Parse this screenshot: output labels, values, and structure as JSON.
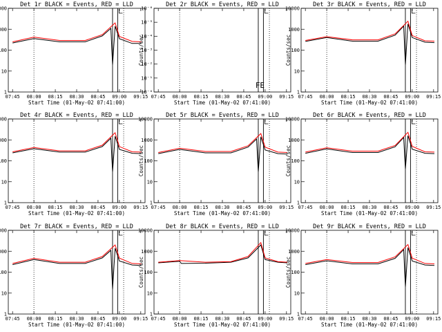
{
  "chart_data": [
    {
      "type": "line",
      "title": "Det 1r BLACK = Events, RED = LLD",
      "xlabel": "Start Time (01-May-02 07:41:00)",
      "ylabel": "Counts/sec",
      "xticks": [
        "07:45",
        "08:00",
        "08:15",
        "08:30",
        "08:45",
        "09:00",
        "09:15"
      ],
      "yticks": [
        "1",
        "10",
        "100",
        "1000",
        "10000"
      ],
      "ylim": [
        1,
        10000
      ],
      "yscale": "log",
      "series": [
        {
          "color": "#000000",
          "x": [
            7.75,
            8.0,
            8.3,
            8.6,
            8.8,
            8.9,
            8.92,
            8.95,
            9.0,
            9.15,
            9.26
          ],
          "y": [
            220,
            360,
            250,
            250,
            480,
            1100,
            20,
            1400,
            350,
            210,
            210
          ]
        },
        {
          "color": "#ff0000",
          "x": [
            7.75,
            8.0,
            8.3,
            8.6,
            8.8,
            8.95,
            9.0,
            9.15,
            9.26
          ],
          "y": [
            250,
            420,
            290,
            290,
            550,
            2000,
            450,
            260,
            250
          ]
        }
      ]
    },
    {
      "type": "line",
      "title": "Det 2r BLACK = Events, RED = LLD",
      "xlabel": "Start Time (01-May-02 07:41:00)",
      "ylabel": "Counts/sec",
      "xticks": [
        "07:45",
        "08:00",
        "08:15",
        "08:30",
        "08:45",
        "09:00",
        "09:15"
      ],
      "yticks": [
        "10⁻⁰",
        "10⁻¹",
        "10⁻²",
        "10⁻³",
        "10⁻⁴",
        "10⁻⁵",
        "10⁻⁶"
      ],
      "yscale": "log",
      "annotation": "FE",
      "series": []
    },
    {
      "type": "line",
      "title": "Det 3r BLACK = Events, RED = LLD",
      "xlabel": "Start Time (01-May-02 07:41:00)",
      "ylabel": "Counts/sec",
      "xticks": [
        "07:45",
        "08:00",
        "08:15",
        "08:30",
        "08:45",
        "09:00",
        "09:15"
      ],
      "yticks": [
        "1",
        "10",
        "100",
        "1000",
        "10000"
      ],
      "ylim": [
        1,
        10000
      ],
      "yscale": "log",
      "series": [
        {
          "color": "#000000",
          "x": [
            7.75,
            8.0,
            8.3,
            8.6,
            8.8,
            8.9,
            8.92,
            8.95,
            9.0,
            9.15,
            9.26
          ],
          "y": [
            260,
            400,
            270,
            270,
            520,
            1400,
            20,
            1800,
            400,
            240,
            230
          ]
        },
        {
          "color": "#ff0000",
          "x": [
            7.75,
            8.0,
            8.3,
            8.6,
            8.8,
            8.95,
            9.0,
            9.15,
            9.26
          ],
          "y": [
            290,
            440,
            310,
            310,
            600,
            2400,
            500,
            280,
            270
          ]
        }
      ]
    },
    {
      "type": "line",
      "title": "Det 4r BLACK = Events, RED = LLD",
      "xlabel": "Start Time (01-May-02 07:41:00)",
      "ylabel": "Counts/sec",
      "xticks": [
        "07:45",
        "08:00",
        "08:15",
        "08:30",
        "08:45",
        "09:00",
        "09:15"
      ],
      "yticks": [
        "1",
        "10",
        "100",
        "1000",
        "10000"
      ],
      "ylim": [
        1,
        10000
      ],
      "yscale": "log",
      "series": [
        {
          "color": "#000000",
          "x": [
            7.75,
            8.0,
            8.3,
            8.6,
            8.8,
            8.9,
            8.92,
            8.95,
            9.0,
            9.15,
            9.26
          ],
          "y": [
            240,
            380,
            260,
            260,
            480,
            1200,
            30,
            1500,
            350,
            230,
            220
          ]
        },
        {
          "color": "#ff0000",
          "x": [
            7.75,
            8.0,
            8.3,
            8.6,
            8.8,
            8.95,
            9.0,
            9.15,
            9.26
          ],
          "y": [
            270,
            430,
            300,
            300,
            560,
            2200,
            480,
            270,
            260
          ]
        }
      ]
    },
    {
      "type": "line",
      "title": "Det 5r BLACK = Events, RED = LLD",
      "xlabel": "Start Time (01-May-02 07:41:00)",
      "ylabel": "Counts/sec",
      "xticks": [
        "07:45",
        "08:00",
        "08:15",
        "08:30",
        "08:45",
        "09:00",
        "09:15"
      ],
      "yticks": [
        "1",
        "10",
        "100",
        "1000",
        "10000"
      ],
      "ylim": [
        1,
        10000
      ],
      "yscale": "log",
      "series": [
        {
          "color": "#000000",
          "x": [
            7.75,
            8.0,
            8.3,
            8.6,
            8.8,
            8.9,
            8.92,
            8.95,
            9.0,
            9.15,
            9.26
          ],
          "y": [
            220,
            350,
            240,
            240,
            450,
            1100,
            30,
            1400,
            330,
            220,
            210
          ]
        },
        {
          "color": "#ff0000",
          "x": [
            7.75,
            8.0,
            8.3,
            8.6,
            8.8,
            8.95,
            9.0,
            9.15,
            9.26
          ],
          "y": [
            250,
            400,
            280,
            280,
            520,
            2000,
            450,
            260,
            250
          ]
        }
      ]
    },
    {
      "type": "line",
      "title": "Det 6r BLACK = Events, RED = LLD",
      "xlabel": "Start Time (01-May-02 07:41:00)",
      "ylabel": "Counts/sec",
      "xticks": [
        "07:45",
        "08:00",
        "08:15",
        "08:30",
        "08:45",
        "09:00",
        "09:15"
      ],
      "yticks": [
        "1",
        "10",
        "100",
        "1000",
        "10000"
      ],
      "ylim": [
        1,
        10000
      ],
      "yscale": "log",
      "series": [
        {
          "color": "#000000",
          "x": [
            7.75,
            8.0,
            8.3,
            8.6,
            8.8,
            8.9,
            8.92,
            8.95,
            9.0,
            9.15,
            9.26
          ],
          "y": [
            230,
            370,
            250,
            250,
            470,
            1300,
            40,
            1600,
            360,
            230,
            220
          ]
        },
        {
          "color": "#ff0000",
          "x": [
            7.75,
            8.0,
            8.3,
            8.6,
            8.8,
            8.95,
            9.0,
            9.15,
            9.26
          ],
          "y": [
            260,
            420,
            290,
            290,
            540,
            2300,
            490,
            270,
            260
          ]
        }
      ]
    },
    {
      "type": "line",
      "title": "Det 7r BLACK = Events, RED = LLD",
      "xlabel": "Start Time (01-May-02 07:41:00)",
      "ylabel": "Counts/sec",
      "xticks": [
        "07:45",
        "08:00",
        "08:15",
        "08:30",
        "08:45",
        "09:00",
        "09:15"
      ],
      "yticks": [
        "1",
        "10",
        "100",
        "1000",
        "10000"
      ],
      "ylim": [
        1,
        10000
      ],
      "yscale": "log",
      "series": [
        {
          "color": "#000000",
          "x": [
            7.75,
            8.0,
            8.3,
            8.6,
            8.8,
            8.9,
            8.92,
            8.95,
            9.0,
            9.15,
            9.26
          ],
          "y": [
            230,
            400,
            260,
            260,
            480,
            1100,
            15,
            1400,
            340,
            220,
            210
          ]
        },
        {
          "color": "#ff0000",
          "x": [
            7.75,
            8.0,
            8.3,
            8.6,
            8.8,
            8.95,
            9.0,
            9.15,
            9.26
          ],
          "y": [
            260,
            460,
            300,
            300,
            560,
            2000,
            470,
            260,
            250
          ]
        }
      ]
    },
    {
      "type": "line",
      "title": "Det 8r BLACK = Events, RED = LLD",
      "xlabel": "Start Time (01-May-02 07:41:00)",
      "ylabel": "Counts/sec",
      "xticks": [
        "07:45",
        "08:00",
        "08:15",
        "08:30",
        "08:45",
        "09:00",
        "09:15"
      ],
      "yticks": [
        "1",
        "10",
        "100",
        "1000",
        "10000"
      ],
      "ylim": [
        1,
        10000
      ],
      "yscale": "log",
      "series": [
        {
          "color": "#000000",
          "x": [
            7.75,
            8.0,
            8.02,
            8.3,
            8.6,
            8.8,
            8.95,
            9.0,
            9.15,
            9.26
          ],
          "y": [
            280,
            330,
            260,
            270,
            300,
            480,
            2000,
            400,
            300,
            280
          ]
        },
        {
          "color": "#ff0000",
          "x": [
            7.75,
            8.0,
            8.3,
            8.6,
            8.8,
            8.95,
            9.0,
            9.15,
            9.26
          ],
          "y": [
            300,
            360,
            300,
            320,
            560,
            2600,
            480,
            320,
            300
          ]
        }
      ]
    },
    {
      "type": "line",
      "title": "Det 9r BLACK = Events, RED = LLD",
      "xlabel": "Start Time (01-May-02 07:41:00)",
      "ylabel": "Counts/sec",
      "xticks": [
        "07:45",
        "08:00",
        "08:15",
        "08:30",
        "08:45",
        "09:00",
        "09:15"
      ],
      "yticks": [
        "1",
        "10",
        "100",
        "1000",
        "10000"
      ],
      "ylim": [
        1,
        10000
      ],
      "yscale": "log",
      "series": [
        {
          "color": "#000000",
          "x": [
            7.75,
            8.0,
            8.3,
            8.6,
            8.8,
            8.9,
            8.92,
            8.95,
            9.0,
            9.15,
            9.26
          ],
          "y": [
            230,
            350,
            250,
            250,
            460,
            1200,
            20,
            1500,
            340,
            220,
            210
          ]
        },
        {
          "color": "#ff0000",
          "x": [
            7.75,
            8.0,
            8.3,
            8.6,
            8.8,
            8.95,
            9.0,
            9.15,
            9.26
          ],
          "y": [
            260,
            400,
            290,
            290,
            540,
            2100,
            470,
            260,
            250
          ]
        }
      ]
    }
  ]
}
